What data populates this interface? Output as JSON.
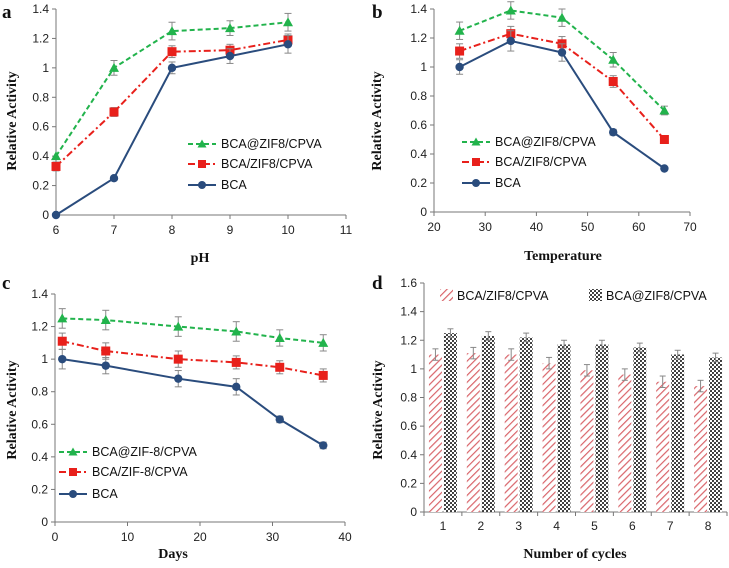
{
  "figure": {
    "colors": {
      "green": "#22b34c",
      "red": "#e8201b",
      "blue": "#2a4c7d",
      "bar_pink": "#d9646a",
      "bar_dots": "#1a1a1a"
    },
    "chart_data": [
      {
        "panel": "a",
        "type": "line",
        "title": "",
        "xlabel": "pH",
        "ylabel": "Relative Activity",
        "xlim": [
          6,
          11
        ],
        "ylim": [
          0,
          1.4
        ],
        "xticks": [
          6,
          7,
          8,
          9,
          10,
          11
        ],
        "yticks": [
          0,
          0.2,
          0.4,
          0.6,
          0.8,
          1,
          1.2,
          1.4
        ],
        "legend": "center-right",
        "series": [
          {
            "name": "BCA@ZIF8/CPVA",
            "color": "#22b34c",
            "style": "dashed",
            "marker": "triangle",
            "x": [
              6,
              7,
              8,
              9,
              10
            ],
            "values": [
              0.4,
              1.0,
              1.25,
              1.27,
              1.31
            ],
            "errors": [
              0.0,
              0.05,
              0.06,
              0.05,
              0.06
            ]
          },
          {
            "name": "BCA/ZIF8/CPVA",
            "color": "#e8201b",
            "style": "dashdot",
            "marker": "square",
            "x": [
              6,
              7,
              8,
              9,
              10
            ],
            "values": [
              0.33,
              0.7,
              1.11,
              1.12,
              1.19
            ],
            "errors": [
              0.03,
              0.03,
              0.04,
              0.04,
              0.04
            ]
          },
          {
            "name": "BCA",
            "color": "#2a4c7d",
            "style": "solid",
            "marker": "circle",
            "x": [
              6,
              7,
              8,
              9,
              10
            ],
            "values": [
              0.0,
              0.25,
              1.0,
              1.08,
              1.16
            ],
            "errors": [
              0.0,
              0.0,
              0.04,
              0.05,
              0.06
            ]
          }
        ]
      },
      {
        "panel": "b",
        "type": "line",
        "title": "",
        "xlabel": "Temperature",
        "ylabel": "Relative Activity",
        "xlim": [
          20,
          70
        ],
        "ylim": [
          0,
          1.4
        ],
        "xticks": [
          20,
          30,
          40,
          50,
          60,
          70
        ],
        "yticks": [
          0,
          0.2,
          0.4,
          0.6,
          0.8,
          1,
          1.2,
          1.4
        ],
        "legend": "center-left",
        "series": [
          {
            "name": "BCA@ZIF8/CPVA",
            "color": "#22b34c",
            "style": "dashed",
            "marker": "triangle",
            "x": [
              25,
              35,
              45,
              55,
              65
            ],
            "values": [
              1.25,
              1.39,
              1.34,
              1.05,
              0.7
            ],
            "errors": [
              0.06,
              0.06,
              0.06,
              0.05,
              0.03
            ]
          },
          {
            "name": "BCA/ZIF8/CPVA",
            "color": "#e8201b",
            "style": "dashdot",
            "marker": "square",
            "x": [
              25,
              35,
              45,
              55,
              65
            ],
            "values": [
              1.11,
              1.23,
              1.16,
              0.9,
              0.5
            ],
            "errors": [
              0.05,
              0.05,
              0.05,
              0.04,
              0.0
            ]
          },
          {
            "name": "BCA",
            "color": "#2a4c7d",
            "style": "solid",
            "marker": "circle",
            "x": [
              25,
              35,
              45,
              55,
              65
            ],
            "values": [
              1.0,
              1.18,
              1.1,
              0.55,
              0.3
            ],
            "errors": [
              0.05,
              0.07,
              0.06,
              0.02,
              0.0
            ]
          }
        ]
      },
      {
        "panel": "c",
        "type": "line",
        "title": "",
        "xlabel": "Days",
        "ylabel": "Relative Activity",
        "xlim": [
          0,
          40
        ],
        "ylim": [
          0,
          1.4
        ],
        "xticks": [
          0,
          10,
          20,
          30,
          40
        ],
        "yticks": [
          0,
          0.2,
          0.4,
          0.6,
          0.8,
          1,
          1.2,
          1.4
        ],
        "legend": "bottom-left",
        "series": [
          {
            "name": "BCA@ZIF-8/CPVA",
            "color": "#22b34c",
            "style": "dashed",
            "marker": "triangle",
            "x": [
              1,
              7,
              17,
              25,
              31,
              37
            ],
            "values": [
              1.25,
              1.24,
              1.2,
              1.17,
              1.13,
              1.1
            ],
            "errors": [
              0.06,
              0.06,
              0.06,
              0.06,
              0.05,
              0.05
            ]
          },
          {
            "name": "BCA/ZIF-8/CPVA",
            "color": "#e8201b",
            "style": "dashdot",
            "marker": "square",
            "x": [
              1,
              7,
              17,
              25,
              31,
              37
            ],
            "values": [
              1.11,
              1.05,
              1.0,
              0.98,
              0.95,
              0.9
            ],
            "errors": [
              0.05,
              0.05,
              0.05,
              0.04,
              0.04,
              0.04
            ]
          },
          {
            "name": "BCA",
            "color": "#2a4c7d",
            "style": "solid",
            "marker": "circle",
            "x": [
              1,
              7,
              17,
              25,
              31,
              37
            ],
            "values": [
              1.0,
              0.96,
              0.88,
              0.83,
              0.63,
              0.47
            ],
            "errors": [
              0.06,
              0.05,
              0.05,
              0.05,
              0.02,
              0.02
            ]
          }
        ]
      },
      {
        "panel": "d",
        "type": "bar",
        "title": "",
        "xlabel": "Number of cycles",
        "ylabel": "Relative Activity",
        "ylim": [
          0,
          1.6
        ],
        "yticks": [
          0,
          0.2,
          0.4,
          0.6,
          0.8,
          1,
          1.2,
          1.4,
          1.6
        ],
        "categories": [
          "1",
          "2",
          "3",
          "4",
          "5",
          "6",
          "7",
          "8"
        ],
        "legend": "top",
        "series": [
          {
            "name": "BCA/ZIF8/CPVA",
            "pattern": "hatch",
            "color": "#d9646a",
            "values": [
              1.1,
              1.11,
              1.1,
              1.04,
              0.99,
              0.96,
              0.91,
              0.88
            ],
            "errors": [
              0.04,
              0.04,
              0.04,
              0.04,
              0.04,
              0.04,
              0.04,
              0.04
            ]
          },
          {
            "name": "BCA@ZIF8/CPVA",
            "pattern": "dots",
            "color": "#1a1a1a",
            "values": [
              1.25,
              1.23,
              1.22,
              1.17,
              1.17,
              1.15,
              1.1,
              1.08
            ],
            "errors": [
              0.03,
              0.03,
              0.03,
              0.03,
              0.03,
              0.03,
              0.03,
              0.03
            ]
          }
        ]
      }
    ]
  }
}
